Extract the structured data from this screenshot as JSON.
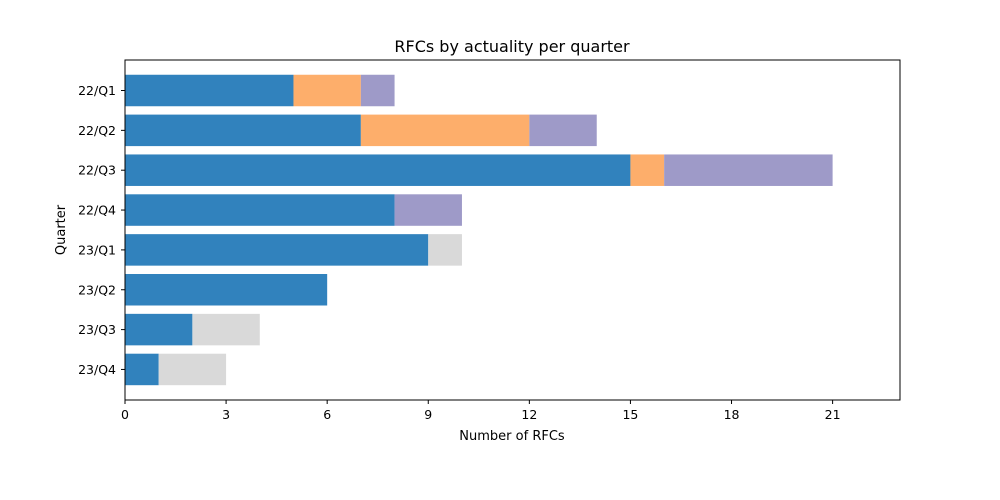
{
  "chart_data": {
    "type": "bar",
    "orientation": "horizontal",
    "stacked": true,
    "title": "RFCs by actuality per quarter",
    "xlabel": "Number of RFCs",
    "ylabel": "Quarter",
    "xlim": [
      0,
      23
    ],
    "xticks": [
      0,
      3,
      6,
      9,
      12,
      15,
      18,
      21
    ],
    "categories": [
      "22/Q1",
      "22/Q2",
      "22/Q3",
      "22/Q4",
      "23/Q1",
      "23/Q2",
      "23/Q3",
      "23/Q4"
    ],
    "series": [
      {
        "color": "#3182bd",
        "values": [
          5,
          7,
          15,
          8,
          9,
          6,
          2,
          1
        ]
      },
      {
        "color": "#fdae6b",
        "values": [
          2,
          5,
          1,
          0,
          0,
          0,
          0,
          0
        ]
      },
      {
        "color": "#9e9ac8",
        "values": [
          1,
          2,
          5,
          2,
          0,
          0,
          0,
          0
        ]
      },
      {
        "color": "#d9d9d9",
        "values": [
          0,
          0,
          0,
          0,
          1,
          0,
          2,
          2
        ]
      }
    ],
    "grid": false,
    "legend": "none"
  }
}
